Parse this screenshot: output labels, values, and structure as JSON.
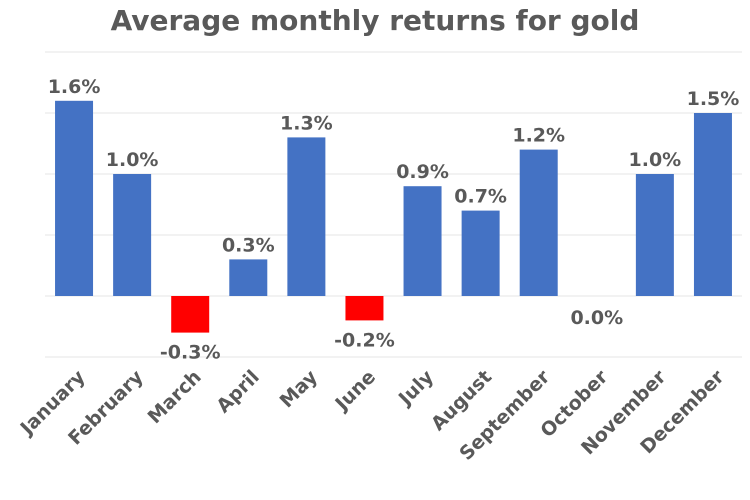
{
  "chart_data": {
    "type": "bar",
    "title": "Average monthly returns for gold",
    "xlabel": "",
    "ylabel": "",
    "categories": [
      "January",
      "February",
      "March",
      "April",
      "May",
      "June",
      "July",
      "August",
      "September",
      "October",
      "November",
      "December"
    ],
    "values": [
      1.6,
      1.0,
      -0.3,
      0.3,
      1.3,
      -0.2,
      0.9,
      0.7,
      1.2,
      0.0,
      1.0,
      1.5
    ],
    "data_labels": [
      "1.6%",
      "1.0%",
      "-0.3%",
      "0.3%",
      "1.3%",
      "-0.2%",
      "0.9%",
      "0.7%",
      "1.2%",
      "0.0%",
      "1.0%",
      "1.5%"
    ],
    "ylim": [
      -0.5,
      2.0
    ],
    "gridlines": [
      -0.5,
      0.0,
      0.5,
      1.0,
      1.5,
      2.0
    ],
    "grid": true,
    "colors": {
      "positive": "#4472C4",
      "negative": "#FF0000",
      "grid": "#E6E6E6",
      "text": "#595959"
    }
  }
}
